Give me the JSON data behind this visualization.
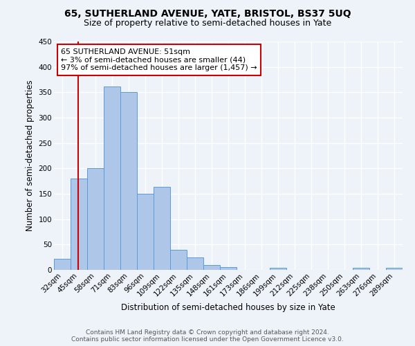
{
  "title": "65, SUTHERLAND AVENUE, YATE, BRISTOL, BS37 5UQ",
  "subtitle": "Size of property relative to semi-detached houses in Yate",
  "xlabel": "Distribution of semi-detached houses by size in Yate",
  "ylabel": "Number of semi-detached properties",
  "bin_labels": [
    "32sqm",
    "45sqm",
    "58sqm",
    "71sqm",
    "83sqm",
    "96sqm",
    "109sqm",
    "122sqm",
    "135sqm",
    "148sqm",
    "161sqm",
    "173sqm",
    "186sqm",
    "199sqm",
    "212sqm",
    "225sqm",
    "238sqm",
    "250sqm",
    "263sqm",
    "276sqm",
    "289sqm"
  ],
  "bar_heights": [
    22,
    180,
    200,
    362,
    350,
    150,
    163,
    40,
    25,
    9,
    5,
    0,
    0,
    4,
    0,
    0,
    0,
    0,
    4,
    0,
    4
  ],
  "bar_color": "#aec6e8",
  "bar_edge_color": "#5b9bd5",
  "ylim": [
    0,
    450
  ],
  "yticks": [
    0,
    50,
    100,
    150,
    200,
    250,
    300,
    350,
    400,
    450
  ],
  "vline_color": "#cc0000",
  "annotation_text": "65 SUTHERLAND AVENUE: 51sqm\n← 3% of semi-detached houses are smaller (44)\n97% of semi-detached houses are larger (1,457) →",
  "annotation_box_color": "#ffffff",
  "annotation_box_edge_color": "#cc0000",
  "footer_line1": "Contains HM Land Registry data © Crown copyright and database right 2024.",
  "footer_line2": "Contains public sector information licensed under the Open Government Licence v3.0.",
  "bg_color": "#eef3f9",
  "grid_color": "#ffffff",
  "title_fontsize": 10,
  "subtitle_fontsize": 9,
  "axis_label_fontsize": 8.5,
  "tick_fontsize": 7.5,
  "annotation_fontsize": 8,
  "footer_fontsize": 6.5
}
